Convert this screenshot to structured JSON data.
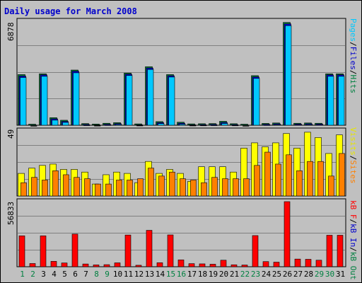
{
  "title": "Daily usage for March 2008",
  "panels": {
    "top": {
      "max_label": "6878",
      "legend": [
        {
          "text": "Pages",
          "color": "#00c8ff"
        },
        {
          "text": "/",
          "color": "#000000"
        },
        {
          "text": "Files",
          "color": "#0000cc"
        },
        {
          "text": "/",
          "color": "#000000"
        },
        {
          "text": "Hits",
          "color": "#008040"
        }
      ]
    },
    "middle": {
      "max_label": "49",
      "legend": [
        {
          "text": "Visits",
          "color": "#e6e600"
        },
        {
          "text": "/",
          "color": "#000000"
        },
        {
          "text": "Sites",
          "color": "#ff8000"
        }
      ]
    },
    "bottom": {
      "max_label": "56833",
      "legend": [
        {
          "text": "kB F",
          "color": "#ff0000"
        },
        {
          "text": "/",
          "color": "#000000"
        },
        {
          "text": "kB In",
          "color": "#0000cc"
        },
        {
          "text": "/",
          "color": "#000000"
        },
        {
          "text": "kB Out",
          "color": "#008040"
        }
      ]
    }
  },
  "colors": {
    "background": "#c0c0c0",
    "title": "#0000cc",
    "hits": "#008040",
    "files": "#0000cc",
    "pages": "#00c8ff",
    "visits": "#ffff00",
    "sites": "#ff8000",
    "kbytes": "#ff0000",
    "weekday_label": "#000000",
    "weekend_label": "#008040"
  },
  "chart_data": [
    {
      "type": "bar",
      "title": "Daily usage for March 2008",
      "categories": [
        "1",
        "2",
        "3",
        "4",
        "5",
        "6",
        "7",
        "8",
        "9",
        "10",
        "11",
        "12",
        "13",
        "14",
        "15",
        "16",
        "17",
        "18",
        "19",
        "20",
        "21",
        "22",
        "23",
        "24",
        "25",
        "26",
        "27",
        "28",
        "29",
        "30",
        "31"
      ],
      "weekend_days": [
        "1",
        "2",
        "8",
        "9",
        "15",
        "16",
        "22",
        "23",
        "29",
        "30"
      ],
      "ylim": [
        0,
        6878
      ],
      "series": [
        {
          "name": "Hits",
          "values": [
            3350,
            70,
            3400,
            500,
            330,
            3650,
            110,
            80,
            130,
            170,
            3450,
            90,
            3870,
            240,
            3350,
            200,
            90,
            100,
            110,
            260,
            100,
            70,
            3280,
            120,
            150,
            6800,
            130,
            150,
            130,
            3400,
            3400
          ]
        },
        {
          "name": "Files",
          "values": [
            3300,
            60,
            3380,
            470,
            300,
            3620,
            100,
            70,
            110,
            150,
            3420,
            80,
            3830,
            220,
            3320,
            180,
            80,
            90,
            100,
            230,
            90,
            60,
            3240,
            110,
            140,
            6750,
            120,
            140,
            120,
            3380,
            3380
          ]
        },
        {
          "name": "Pages",
          "values": [
            3250,
            50,
            3330,
            430,
            280,
            3560,
            90,
            60,
            100,
            140,
            3380,
            70,
            3780,
            200,
            3280,
            160,
            70,
            80,
            90,
            210,
            80,
            50,
            3190,
            100,
            130,
            6680,
            110,
            130,
            110,
            3330,
            3330
          ]
        }
      ]
    },
    {
      "type": "bar",
      "categories": [
        "1",
        "2",
        "3",
        "4",
        "5",
        "6",
        "7",
        "8",
        "9",
        "10",
        "11",
        "12",
        "13",
        "14",
        "15",
        "16",
        "17",
        "18",
        "19",
        "20",
        "21",
        "22",
        "23",
        "24",
        "25",
        "26",
        "27",
        "28",
        "29",
        "30",
        "31"
      ],
      "ylim": [
        0,
        49
      ],
      "series": [
        {
          "name": "Visits",
          "values": [
            17,
            21,
            23,
            24,
            20,
            20,
            18,
            9,
            16,
            18,
            17,
            10,
            26,
            17,
            20,
            17,
            11,
            22,
            22,
            22,
            18,
            36,
            40,
            37,
            40,
            47,
            36,
            48,
            44,
            32,
            46
          ]
        },
        {
          "name": "Sites",
          "values": [
            10,
            14,
            12,
            19,
            16,
            14,
            13,
            9,
            9,
            12,
            12,
            13,
            21,
            15,
            18,
            13,
            12,
            10,
            14,
            13,
            13,
            13,
            23,
            33,
            24,
            31,
            19,
            26,
            26,
            15,
            32
          ]
        }
      ]
    },
    {
      "type": "bar",
      "categories": [
        "1",
        "2",
        "3",
        "4",
        "5",
        "6",
        "7",
        "8",
        "9",
        "10",
        "11",
        "12",
        "13",
        "14",
        "15",
        "16",
        "17",
        "18",
        "19",
        "20",
        "21",
        "22",
        "23",
        "24",
        "25",
        "26",
        "27",
        "28",
        "29",
        "30",
        "31"
      ],
      "ylim": [
        0,
        56833
      ],
      "series": [
        {
          "name": "kB F",
          "values": [
            27000,
            2800,
            27000,
            4700,
            3300,
            28500,
            2400,
            1600,
            1800,
            3400,
            27700,
            1300,
            31800,
            3500,
            27800,
            6000,
            2700,
            2500,
            2200,
            5700,
            1700,
            1500,
            27200,
            4500,
            4000,
            56833,
            6700,
            6500,
            5700,
            27500,
            27500
          ]
        }
      ]
    }
  ]
}
